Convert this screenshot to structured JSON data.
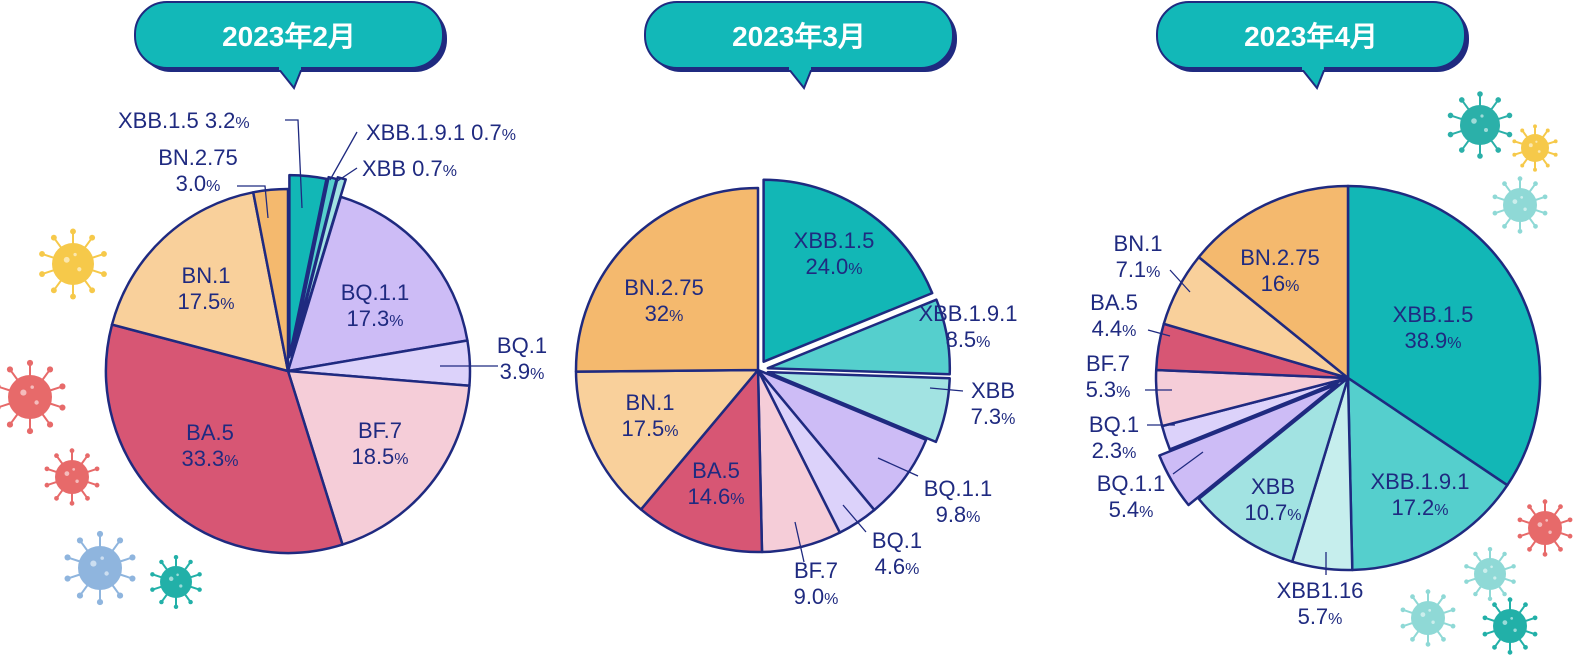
{
  "colors": {
    "outline": "#1f2a80",
    "text": "#1f2a80",
    "badge_fill": "#12b8b8",
    "badge_text": "#ffffff",
    "XBB.1.5": "#12b7b6",
    "XBB.1.9.1": "#55cfcd",
    "XBB": "#a2e3e2",
    "XBB1.16": "#c6eeed",
    "BQ.1.1": "#cdbcf6",
    "BQ.1": "#dcd2fa",
    "BF.7": "#f5cdd8",
    "BA.5": "#d75674",
    "BN.1": "#f9d09b",
    "BN.2.75": "#f4b96e"
  },
  "chart_data": [
    {
      "type": "pie",
      "title": "2023年2月",
      "unit": "%",
      "slices": [
        {
          "label": "XBB.1.5",
          "value": 3.2,
          "display": "3.2"
        },
        {
          "label": "XBB.1.9.1",
          "value": 0.7,
          "display": "0.7"
        },
        {
          "label": "XBB",
          "value": 0.7,
          "display": "0.7"
        },
        {
          "label": "BQ.1.1",
          "value": 17.3,
          "display": "17.3"
        },
        {
          "label": "BQ.1",
          "value": 3.9,
          "display": "3.9"
        },
        {
          "label": "BF.7",
          "value": 18.5,
          "display": "18.5"
        },
        {
          "label": "BA.5",
          "value": 33.3,
          "display": "33.3"
        },
        {
          "label": "BN.1",
          "value": 17.5,
          "display": "17.5"
        },
        {
          "label": "BN.2.75",
          "value": 3.0,
          "display": "3.0"
        }
      ]
    },
    {
      "type": "pie",
      "title": "2023年3月",
      "unit": "%",
      "slices": [
        {
          "label": "XBB.1.5",
          "value": 24.0,
          "display": "24.0"
        },
        {
          "label": "XBB.1.9.1",
          "value": 8.5,
          "display": "8.5"
        },
        {
          "label": "XBB",
          "value": 7.3,
          "display": "7.3"
        },
        {
          "label": "BQ.1.1",
          "value": 9.8,
          "display": "9.8"
        },
        {
          "label": "BQ.1",
          "value": 4.6,
          "display": "4.6"
        },
        {
          "label": "BF.7",
          "value": 9.0,
          "display": "9.0"
        },
        {
          "label": "BA.5",
          "value": 14.6,
          "display": "14.6"
        },
        {
          "label": "BN.1",
          "value": 17.5,
          "display": "17.5"
        },
        {
          "label": "BN.2.75",
          "value": 32,
          "display": "32"
        }
      ]
    },
    {
      "type": "pie",
      "title": "2023年4月",
      "unit": "%",
      "slices": [
        {
          "label": "XBB.1.5",
          "value": 38.9,
          "display": "38.9"
        },
        {
          "label": "XBB.1.9.1",
          "value": 17.2,
          "display": "17.2"
        },
        {
          "label": "XBB1.16",
          "value": 5.7,
          "display": "5.7"
        },
        {
          "label": "XBB",
          "value": 10.7,
          "display": "10.7"
        },
        {
          "label": "BQ.1.1",
          "value": 5.4,
          "display": "5.4"
        },
        {
          "label": "BQ.1",
          "value": 2.3,
          "display": "2.3"
        },
        {
          "label": "BF.7",
          "value": 5.3,
          "display": "5.3"
        },
        {
          "label": "BA.5",
          "value": 4.4,
          "display": "4.4"
        },
        {
          "label": "BN.1",
          "value": 7.1,
          "display": "7.1"
        },
        {
          "label": "BN.2.75",
          "value": 16,
          "display": "16"
        }
      ]
    }
  ]
}
